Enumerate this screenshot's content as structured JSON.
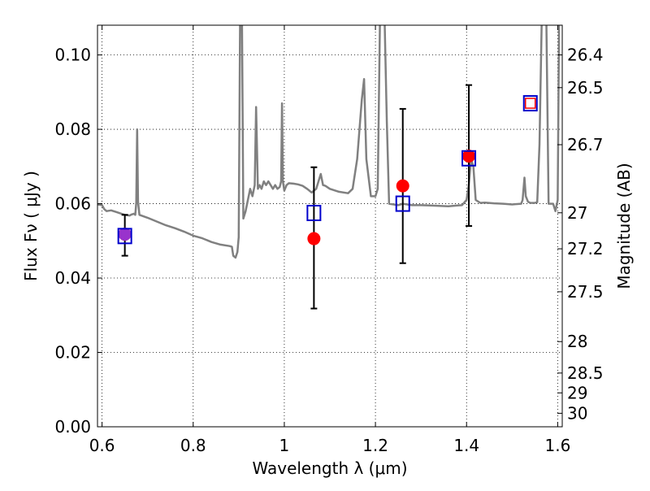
{
  "chart_data": {
    "type": "scatter",
    "xlabel": "Wavelength  λ (μm)",
    "ylabel": "Flux  Fν  ( μJy )",
    "ylabel_right": "Magnitude (AB)",
    "xlim": [
      0.59,
      1.61
    ],
    "ylim": [
      0.0,
      0.108
    ],
    "grid": true,
    "x_ticks": [
      0.6,
      0.8,
      1.0,
      1.2,
      1.4,
      1.6
    ],
    "x_tick_labels": [
      "0.6",
      "0.8",
      "1",
      "1.2",
      "1.4",
      "1.6"
    ],
    "y_ticks": [
      0.0,
      0.02,
      0.04,
      0.06,
      0.08,
      0.1
    ],
    "y_tick_labels": [
      "0.00",
      "0.02",
      "0.04",
      "0.06",
      "0.08",
      "0.10"
    ],
    "mag_ticks": [
      26.4,
      26.5,
      26.7,
      27,
      27.2,
      27.5,
      28,
      28.5,
      29,
      30
    ],
    "mag_tick_labels": [
      "26.4",
      "26.5",
      "26.7",
      "27",
      "27.2",
      "27.5",
      "28",
      "28.5",
      "29",
      "30"
    ],
    "model_spectrum": {
      "color": "#808080",
      "points": [
        [
          0.59,
          0.0598
        ],
        [
          0.6,
          0.0596
        ],
        [
          0.605,
          0.0585
        ],
        [
          0.61,
          0.058
        ],
        [
          0.62,
          0.0582
        ],
        [
          0.63,
          0.0578
        ],
        [
          0.64,
          0.0574
        ],
        [
          0.65,
          0.057
        ],
        [
          0.66,
          0.0568
        ],
        [
          0.665,
          0.0571
        ],
        [
          0.67,
          0.0573
        ],
        [
          0.673,
          0.057
        ],
        [
          0.675,
          0.0602
        ],
        [
          0.677,
          0.08
        ],
        [
          0.679,
          0.0605
        ],
        [
          0.682,
          0.057
        ],
        [
          0.7,
          0.0562
        ],
        [
          0.72,
          0.0552
        ],
        [
          0.74,
          0.0542
        ],
        [
          0.76,
          0.0534
        ],
        [
          0.78,
          0.0525
        ],
        [
          0.8,
          0.0514
        ],
        [
          0.82,
          0.0507
        ],
        [
          0.84,
          0.0497
        ],
        [
          0.86,
          0.049
        ],
        [
          0.88,
          0.0486
        ],
        [
          0.885,
          0.0484
        ],
        [
          0.888,
          0.046
        ],
        [
          0.893,
          0.0455
        ],
        [
          0.897,
          0.047
        ],
        [
          0.9,
          0.051
        ],
        [
          0.903,
          0.11
        ],
        [
          0.907,
          0.11
        ],
        [
          0.91,
          0.056
        ],
        [
          0.915,
          0.058
        ],
        [
          0.92,
          0.061
        ],
        [
          0.925,
          0.064
        ],
        [
          0.93,
          0.062
        ],
        [
          0.935,
          0.065
        ],
        [
          0.938,
          0.086
        ],
        [
          0.942,
          0.064
        ],
        [
          0.946,
          0.065
        ],
        [
          0.95,
          0.064
        ],
        [
          0.955,
          0.066
        ],
        [
          0.96,
          0.065
        ],
        [
          0.965,
          0.066
        ],
        [
          0.97,
          0.065
        ],
        [
          0.975,
          0.064
        ],
        [
          0.98,
          0.065
        ],
        [
          0.985,
          0.064
        ],
        [
          0.99,
          0.0645
        ],
        [
          0.993,
          0.066
        ],
        [
          0.995,
          0.087
        ],
        [
          0.997,
          0.066
        ],
        [
          1.0,
          0.0635
        ],
        [
          1.005,
          0.065
        ],
        [
          1.01,
          0.0655
        ],
        [
          1.02,
          0.0654
        ],
        [
          1.03,
          0.0652
        ],
        [
          1.04,
          0.0648
        ],
        [
          1.05,
          0.064
        ],
        [
          1.06,
          0.063
        ],
        [
          1.065,
          0.0635
        ],
        [
          1.07,
          0.064
        ],
        [
          1.075,
          0.066
        ],
        [
          1.08,
          0.068
        ],
        [
          1.085,
          0.065
        ],
        [
          1.09,
          0.0648
        ],
        [
          1.1,
          0.064
        ],
        [
          1.12,
          0.0632
        ],
        [
          1.14,
          0.0628
        ],
        [
          1.15,
          0.064
        ],
        [
          1.16,
          0.072
        ],
        [
          1.17,
          0.088
        ],
        [
          1.175,
          0.0935
        ],
        [
          1.18,
          0.072
        ],
        [
          1.19,
          0.062
        ],
        [
          1.2,
          0.062
        ],
        [
          1.205,
          0.064
        ],
        [
          1.21,
          0.11
        ],
        [
          1.22,
          0.11
        ],
        [
          1.225,
          0.082
        ],
        [
          1.23,
          0.06
        ],
        [
          1.24,
          0.0598
        ],
        [
          1.25,
          0.0596
        ],
        [
          1.26,
          0.06
        ],
        [
          1.27,
          0.0598
        ],
        [
          1.28,
          0.0596
        ],
        [
          1.3,
          0.0596
        ],
        [
          1.32,
          0.0595
        ],
        [
          1.34,
          0.0594
        ],
        [
          1.36,
          0.0593
        ],
        [
          1.38,
          0.0595
        ],
        [
          1.39,
          0.0596
        ],
        [
          1.4,
          0.061
        ],
        [
          1.405,
          0.065
        ],
        [
          1.41,
          0.072
        ],
        [
          1.415,
          0.07
        ],
        [
          1.42,
          0.061
        ],
        [
          1.43,
          0.0602
        ],
        [
          1.44,
          0.0603
        ],
        [
          1.46,
          0.0601
        ],
        [
          1.48,
          0.06
        ],
        [
          1.5,
          0.0598
        ],
        [
          1.52,
          0.06
        ],
        [
          1.523,
          0.061
        ],
        [
          1.527,
          0.067
        ],
        [
          1.53,
          0.062
        ],
        [
          1.535,
          0.0605
        ],
        [
          1.54,
          0.0602
        ],
        [
          1.55,
          0.0602
        ],
        [
          1.555,
          0.0604
        ],
        [
          1.56,
          0.076
        ],
        [
          1.565,
          0.11
        ],
        [
          1.575,
          0.11
        ],
        [
          1.58,
          0.06
        ],
        [
          1.59,
          0.06
        ],
        [
          1.595,
          0.058
        ],
        [
          1.6,
          0.061
        ],
        [
          1.603,
          0.11
        ],
        [
          1.61,
          0.11
        ]
      ]
    },
    "observed": {
      "color": "#ff0000",
      "x": [
        0.65,
        1.065,
        1.26,
        1.405
      ],
      "y": [
        0.0518,
        0.0506,
        0.0648,
        0.0728
      ],
      "yerr_low": [
        0.046,
        0.0318,
        0.044,
        0.054
      ],
      "yerr_high": [
        0.057,
        0.0698,
        0.0855,
        0.0919
      ]
    },
    "model_photometry": {
      "color": "#0000cc",
      "x": [
        0.65,
        1.065,
        1.26,
        1.405,
        1.54
      ],
      "y": [
        0.0513,
        0.0575,
        0.06,
        0.0722,
        0.087
      ]
    },
    "extra_marker": {
      "color": "#ff0000",
      "x": 1.54,
      "y": 0.087
    },
    "purple_marker": {
      "color": "#9933cc",
      "x": 0.65,
      "y": 0.0518
    }
  }
}
